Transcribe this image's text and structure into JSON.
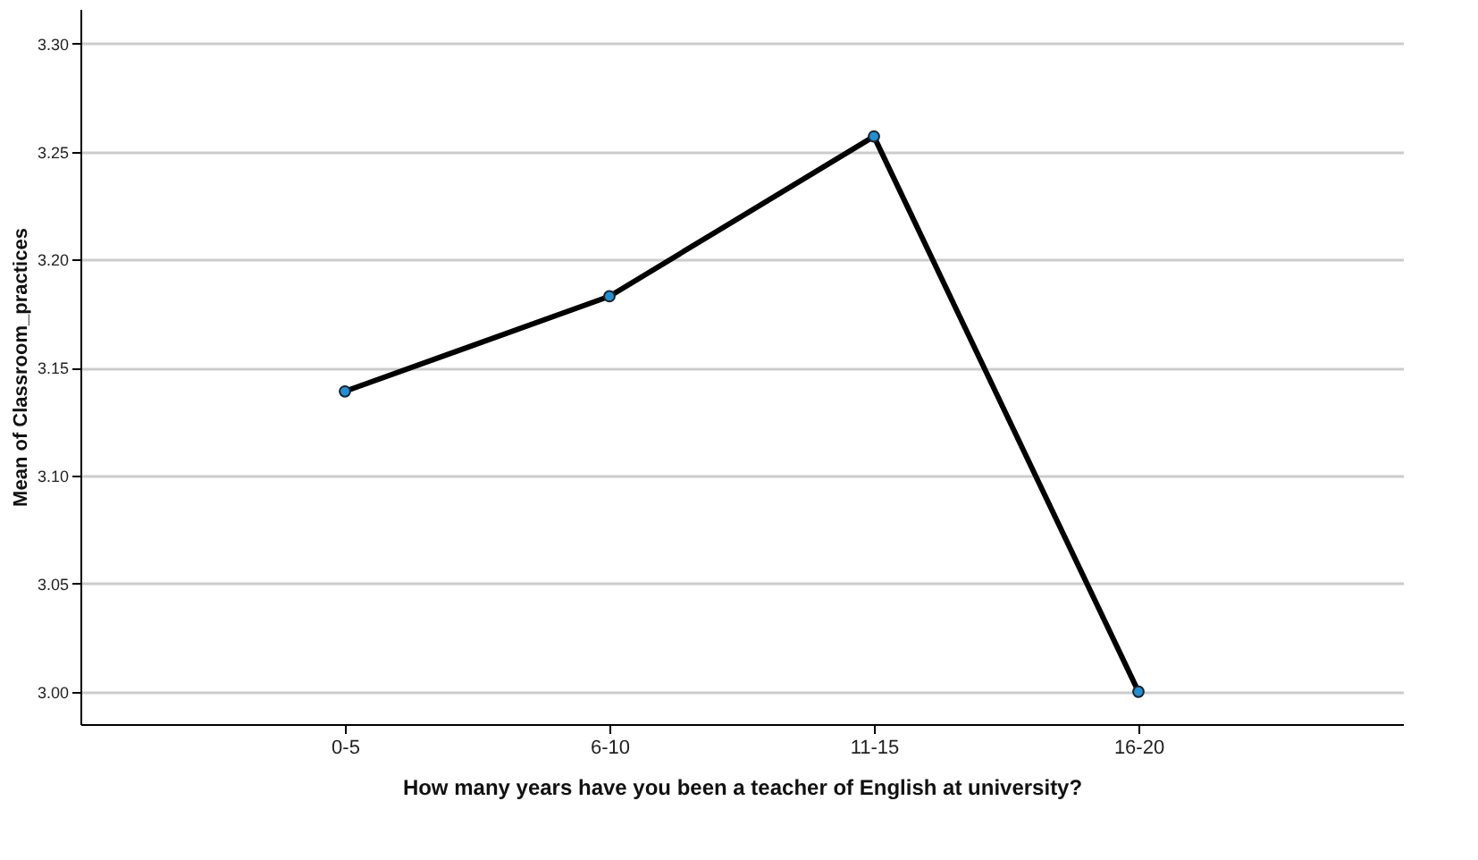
{
  "chart_data": {
    "type": "line",
    "xlabel": "How many years have you been a teacher of English at university?",
    "ylabel": "Mean of Classroom_practices",
    "categories": [
      "0-5",
      "6-10",
      "11-15",
      "16-20"
    ],
    "series": [
      {
        "color": "#000000",
        "values": [
          3.139,
          3.183,
          3.257,
          3.0
        ]
      }
    ],
    "ylim": [
      2.985,
      3.316
    ],
    "yticks": [
      {
        "value": 3.0,
        "label": "3.00"
      },
      3.05,
      {
        "value": 3.1,
        "label": "3.10"
      },
      3.15,
      {
        "value": 3.2,
        "label": "3.20"
      },
      3.25,
      {
        "value": 3.3,
        "label": "3.30"
      }
    ],
    "grid": "y",
    "marker": "circle",
    "line_style": "solid"
  }
}
